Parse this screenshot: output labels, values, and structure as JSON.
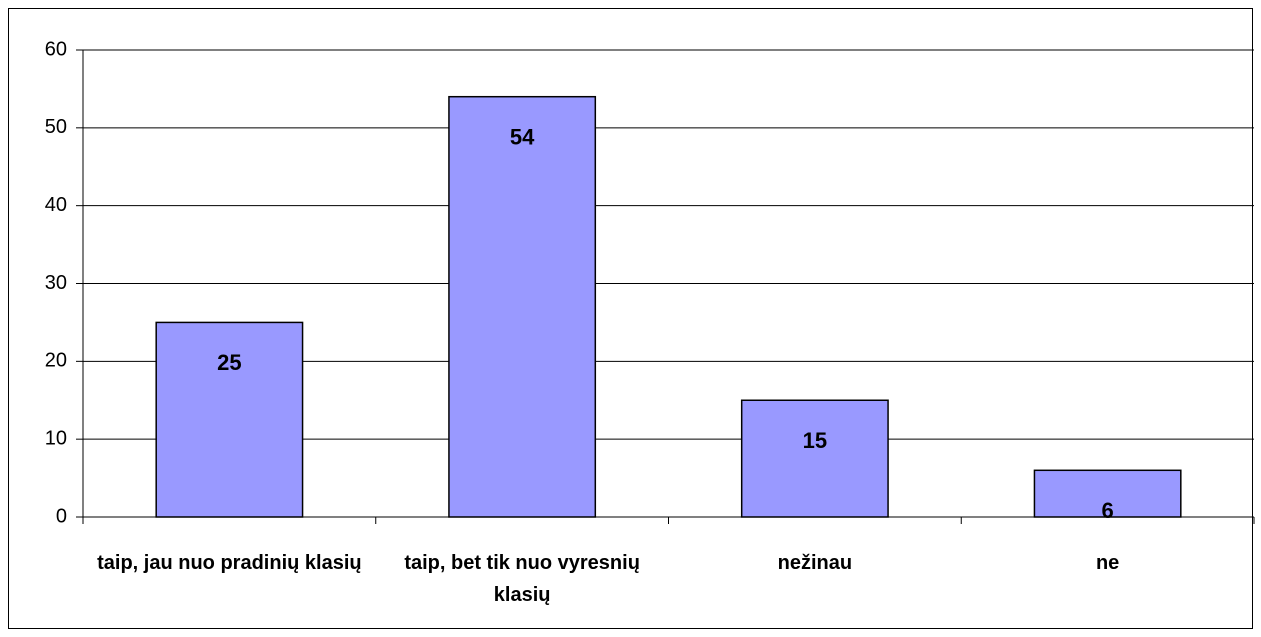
{
  "chart_data": {
    "type": "bar",
    "categories": [
      "taip, jau nuo pradinių klasių",
      "taip, bet tik nuo vyresnių klasių",
      "nežinau",
      "ne"
    ],
    "values": [
      25,
      54,
      15,
      6
    ],
    "color": "#9999ff",
    "ylim": [
      0,
      60
    ],
    "yticks": [
      0,
      10,
      20,
      30,
      40,
      50,
      60
    ],
    "grid": true
  }
}
